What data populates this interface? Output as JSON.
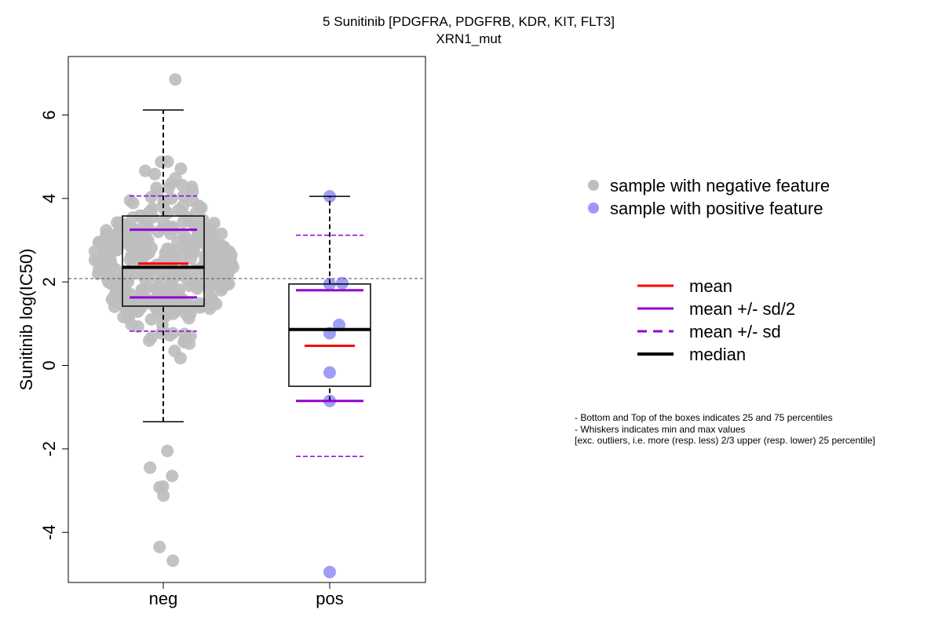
{
  "chart_data": {
    "type": "scatter",
    "title": "5 Sunitinib [PDGFRA, PDGFRB, KDR, KIT, FLT3]",
    "subtitle": "XRN1_mut",
    "ylabel": "Sunitinib log(IC50)",
    "xlabel": "",
    "categories": [
      "neg",
      "pos"
    ],
    "ylim": [
      -5.2,
      7.4
    ],
    "yticks": [
      -4,
      -2,
      0,
      2,
      4,
      6
    ],
    "reference_line": 2.08,
    "colors": {
      "neg": "#bebebe",
      "pos": "#9999f5",
      "mean": "#ff0000",
      "sd": "#9400d3",
      "median": "#000000"
    },
    "groups": [
      {
        "name": "neg",
        "stats": {
          "whisker_low": -1.35,
          "q1": 1.42,
          "median": 2.35,
          "q3": 3.58,
          "whisker_high": 6.12,
          "mean": 2.44,
          "mean_minus_half_sd": 1.63,
          "mean_plus_half_sd": 3.25,
          "mean_minus_sd": 0.82,
          "mean_plus_sd": 4.06
        },
        "outliers": [
          6.85,
          -2.05,
          -2.45,
          -2.65,
          -2.9,
          -2.92,
          -3.12,
          -4.35,
          -4.68
        ]
      },
      {
        "name": "pos",
        "values": [
          4.05,
          1.95,
          1.97,
          0.97,
          0.77,
          -0.17,
          -0.85,
          -4.95
        ],
        "stats": {
          "whisker_low": -0.85,
          "q1": -0.5,
          "median": 0.86,
          "q3": 1.95,
          "whisker_high": 4.05,
          "mean": 0.47,
          "mean_minus_half_sd": -0.85,
          "mean_plus_half_sd": 1.8,
          "mean_minus_sd": -2.18,
          "mean_plus_sd": 3.12
        }
      }
    ],
    "legend_points": [
      {
        "label": "sample with negative feature",
        "color": "#bebebe"
      },
      {
        "label": "sample with positive feature",
        "color": "#9999f5"
      }
    ],
    "legend_lines": [
      {
        "label": "mean",
        "color": "#ff0000",
        "style": "solid"
      },
      {
        "label": "mean +/- sd/2",
        "color": "#9400d3",
        "style": "solid"
      },
      {
        "label": "mean +/- sd",
        "color": "#9400d3",
        "style": "dashed"
      },
      {
        "label": "median",
        "color": "#000000",
        "style": "thick"
      }
    ],
    "notes": [
      "- Bottom and Top of the boxes indicates 25 and 75 percentiles",
      "- Whiskers indicates min and max values",
      "[exc. outliers, i.e. more (resp. less) 2/3 upper (resp. lower) 25 percentile]"
    ]
  }
}
